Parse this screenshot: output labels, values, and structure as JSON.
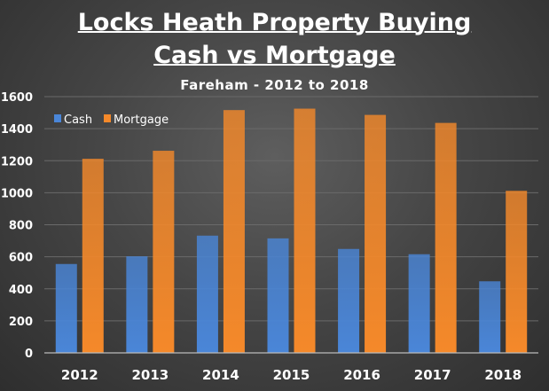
{
  "chart_data": {
    "type": "bar",
    "title": "Locks Heath Property Buying",
    "title_line2": "Cash vs Mortgage",
    "subtitle": "Fareham - 2012 to 2018",
    "categories": [
      "2012",
      "2013",
      "2014",
      "2015",
      "2016",
      "2017",
      "2018"
    ],
    "series": [
      {
        "name": "Cash",
        "color": "#4a86d8",
        "values": [
          555,
          603,
          732,
          715,
          649,
          616,
          447
        ]
      },
      {
        "name": "Mortgage",
        "color": "#f5892a",
        "values": [
          1212,
          1262,
          1516,
          1525,
          1486,
          1436,
          1012
        ]
      }
    ],
    "ylim": [
      0,
      1600
    ],
    "yticks": [
      0,
      200,
      400,
      600,
      800,
      1000,
      1200,
      1400,
      1600
    ],
    "grid": true,
    "legend": "top-left"
  }
}
